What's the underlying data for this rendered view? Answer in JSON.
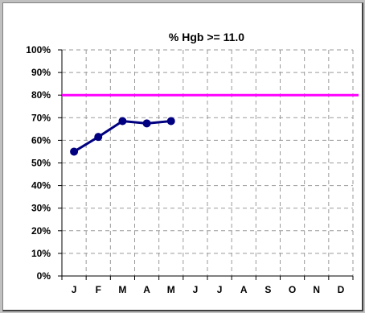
{
  "chart_data": {
    "type": "line",
    "title": "% Hgb >= 11.0",
    "categories": [
      "J",
      "F",
      "M",
      "A",
      "M",
      "J",
      "J",
      "A",
      "S",
      "O",
      "N",
      "D"
    ],
    "y_ticks": [
      "0%",
      "10%",
      "20%",
      "30%",
      "40%",
      "50%",
      "60%",
      "70%",
      "80%",
      "90%",
      "100%"
    ],
    "ylim": [
      0,
      100
    ],
    "grid": true,
    "series": [
      {
        "values": [
          55,
          61.5,
          68.5,
          67.5,
          68.5,
          null,
          null,
          null,
          null,
          null,
          null,
          null
        ],
        "color": "#000080"
      }
    ],
    "target_line": {
      "value": 80,
      "color": "#ff00ff"
    }
  }
}
